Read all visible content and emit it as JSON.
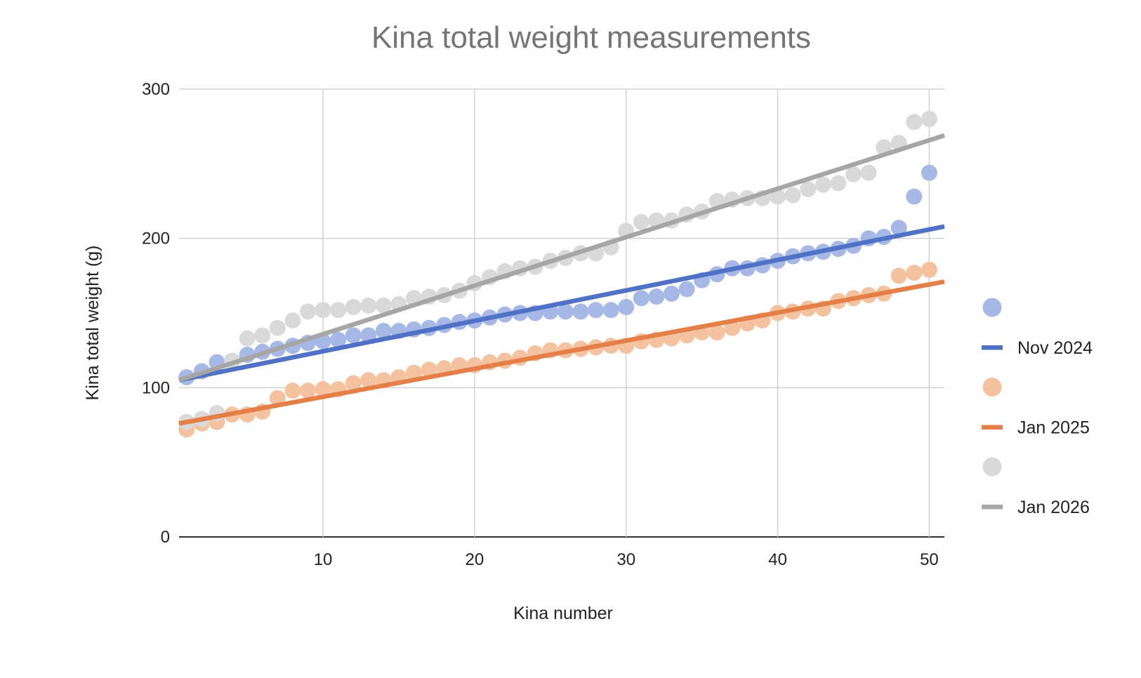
{
  "chart_data": {
    "type": "scatter",
    "title": "Kina total weight measurements",
    "xlabel": "Kina number",
    "ylabel": "Kina total weight (g)",
    "xlim": [
      0.5,
      51
    ],
    "ylim": [
      0,
      300
    ],
    "xticks": [
      10,
      20,
      30,
      40,
      50
    ],
    "yticks": [
      0,
      100,
      200,
      300
    ],
    "grid": true,
    "legend_position": "right",
    "series": [
      {
        "name": "Nov 2024",
        "point_color": "#a5b8e6",
        "line_color": "#4f72c6",
        "trendline": [
          105,
          208
        ],
        "x": [
          1,
          2,
          3,
          4,
          5,
          6,
          7,
          8,
          9,
          10,
          11,
          12,
          13,
          14,
          15,
          16,
          17,
          18,
          19,
          20,
          21,
          22,
          23,
          24,
          25,
          26,
          27,
          28,
          29,
          30,
          31,
          32,
          33,
          34,
          35,
          36,
          37,
          38,
          39,
          40,
          41,
          42,
          43,
          44,
          45,
          46,
          47,
          48,
          49,
          50
        ],
        "y": [
          107,
          111,
          117,
          118,
          122,
          124,
          126,
          128,
          130,
          131,
          132,
          135,
          135,
          138,
          138,
          139,
          140,
          142,
          144,
          145,
          147,
          149,
          150,
          150,
          151,
          151,
          151,
          152,
          152,
          154,
          160,
          161,
          163,
          166,
          172,
          176,
          180,
          180,
          182,
          185,
          188,
          190,
          191,
          193,
          195,
          200,
          201,
          207,
          228,
          244
        ]
      },
      {
        "name": "Jan 2025",
        "point_color": "#f5c2a0",
        "line_color": "#e47f47",
        "trendline": [
          76,
          171
        ],
        "x": [
          1,
          1,
          2,
          3,
          3,
          4,
          5,
          6,
          7,
          8,
          9,
          10,
          11,
          12,
          13,
          14,
          15,
          16,
          17,
          18,
          19,
          20,
          21,
          22,
          23,
          24,
          25,
          26,
          27,
          28,
          29,
          30,
          31,
          32,
          33,
          34,
          35,
          36,
          37,
          38,
          39,
          40,
          41,
          42,
          43,
          44,
          45,
          46,
          47,
          48,
          49,
          50
        ],
        "y": [
          72,
          77,
          76,
          77,
          82,
          82,
          82,
          84,
          93,
          98,
          98,
          99,
          99,
          103,
          105,
          105,
          107,
          110,
          112,
          113,
          115,
          115,
          117,
          118,
          120,
          123,
          125,
          125,
          126,
          127,
          128,
          128,
          131,
          132,
          133,
          135,
          137,
          137,
          140,
          143,
          145,
          150,
          151,
          153,
          153,
          158,
          160,
          162,
          163,
          175,
          177,
          179
        ]
      },
      {
        "name": "Jan 2026",
        "point_color": "#d9d9d9",
        "line_color": "#a6a6a6",
        "trendline": [
          105,
          269
        ],
        "x": [
          1,
          2,
          3,
          4,
          5,
          6,
          7,
          8,
          9,
          10,
          11,
          12,
          13,
          14,
          15,
          16,
          17,
          18,
          19,
          20,
          21,
          22,
          23,
          24,
          25,
          26,
          27,
          28,
          29,
          30,
          31,
          32,
          33,
          34,
          35,
          36,
          37,
          38,
          39,
          40,
          41,
          42,
          43,
          44,
          45,
          46,
          47,
          48,
          49,
          50
        ],
        "y": [
          77,
          79,
          83,
          118,
          133,
          135,
          140,
          145,
          151,
          152,
          152,
          154,
          155,
          155,
          156,
          160,
          161,
          162,
          165,
          170,
          174,
          178,
          180,
          181,
          185,
          187,
          190,
          190,
          194,
          205,
          211,
          212,
          212,
          216,
          218,
          225,
          226,
          227,
          227,
          228,
          229,
          233,
          236,
          237,
          243,
          244,
          261,
          264,
          278,
          280
        ]
      }
    ]
  }
}
